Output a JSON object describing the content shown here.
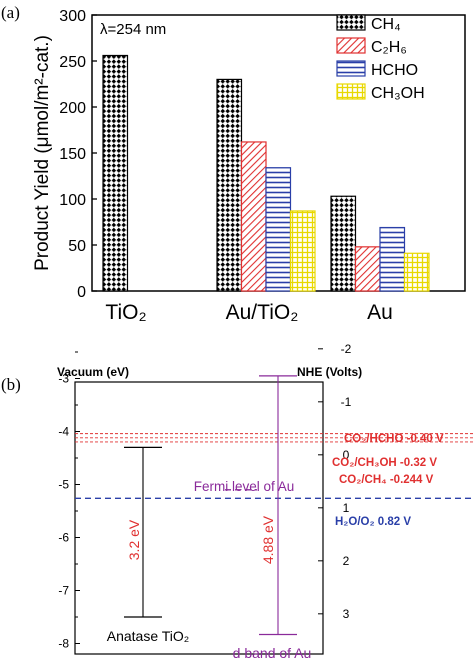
{
  "panel_labels": {
    "a": "(a)",
    "b": "(b)"
  },
  "chart_data": [
    {
      "type": "bar",
      "panel": "(a)",
      "annotation": "λ=254 nm",
      "ylabel": "Product Yield (μmol/m²-cat.)",
      "ylim": [
        0,
        300
      ],
      "yticks": [
        0,
        50,
        100,
        150,
        200,
        250,
        300
      ],
      "categories": [
        "TiO₂",
        "Au/TiO₂",
        "Au"
      ],
      "series": [
        {
          "name": "CH₄",
          "values": [
            256,
            230,
            103
          ],
          "color": "#000000",
          "pattern": "crosshatch"
        },
        {
          "name": "C₂H₆",
          "values": [
            null,
            162,
            48
          ],
          "color": "#e03030",
          "pattern": "diagonal"
        },
        {
          "name": "HCHO",
          "values": [
            null,
            134,
            69
          ],
          "color": "#2a3fa8",
          "pattern": "horizontal"
        },
        {
          "name": "CH₃OH",
          "values": [
            null,
            87,
            41
          ],
          "color": "#e8d800",
          "pattern": "grid"
        }
      ],
      "legend_position": "top-right",
      "grid": false
    },
    {
      "type": "energy-diagram",
      "panel": "(b)",
      "left_axis": {
        "label": "Vacuum (eV)",
        "ticks": [
          -3,
          -4,
          -5,
          -6,
          -7,
          -8
        ],
        "range": [
          -8,
          -2.5
        ]
      },
      "right_axis": {
        "label": "NHE (Volts)",
        "ticks": [
          -2,
          -1,
          0,
          1,
          2,
          3
        ],
        "ticklabels": [
          "-2",
          "-1",
          "0",
          "1",
          "2",
          "3"
        ]
      },
      "levels": [
        {
          "label": "CO₂/HCHO -0.40 V",
          "nhe": -0.4,
          "color": "#e03030"
        },
        {
          "label": "CO₂/CH₃OH -0.32 V",
          "nhe": -0.32,
          "color": "#e03030"
        },
        {
          "label": "CO₂/CH₄ -0.244 V",
          "nhe": -0.244,
          "color": "#e03030"
        },
        {
          "label": "H₂O/O₂ 0.82 V",
          "nhe": 0.82,
          "color": "#2a3fa8"
        }
      ],
      "anatase": {
        "label": "Anatase TiO₂",
        "gap_label": "3.2 eV",
        "cb_ev": -4.3,
        "vb_ev": -7.5
      },
      "au": {
        "fermi_label": "Fermi level of Au",
        "fermi_ev": -5.1,
        "dband_label": "d band of Au",
        "gap_label": "4.88 eV",
        "top_ev": -2.95,
        "bottom_ev": -7.83,
        "color": "#8a2a9a"
      }
    }
  ]
}
